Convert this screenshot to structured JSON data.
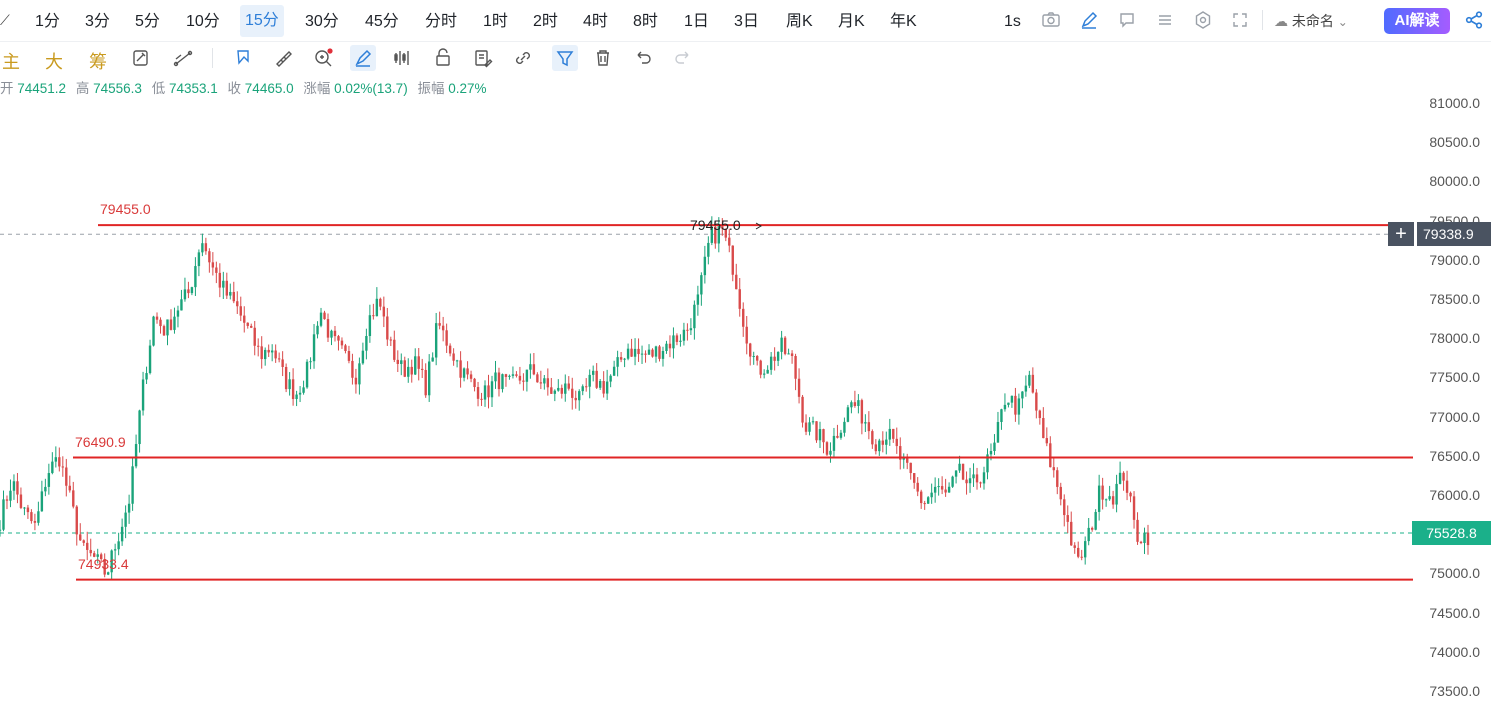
{
  "timeframes": [
    "1分",
    "3分",
    "5分",
    "10分",
    "15分",
    "30分",
    "45分",
    "分时",
    "1时",
    "2时",
    "4时",
    "8时",
    "1日",
    "3日",
    "周K",
    "月K",
    "年K"
  ],
  "active_timeframe": "15分",
  "top_right": {
    "interval_label": "1s",
    "workspace_name": "未命名",
    "ai_button": "AI解读"
  },
  "indicators_cn": [
    "主",
    "大",
    "筹"
  ],
  "ohlc": {
    "open_label": "开",
    "open": "74451.2",
    "high_label": "高",
    "high": "74556.3",
    "low_label": "低",
    "low": "74353.1",
    "close_label": "收",
    "close": "74465.0",
    "change_label": "涨幅",
    "change": "0.02%(13.7)",
    "amp_label": "振幅",
    "amp": "0.27%"
  },
  "price_axis": [
    "81000.0",
    "80500.0",
    "80000.0",
    "79500.0",
    "79000.0",
    "78500.0",
    "78000.0",
    "77500.0",
    "77000.0",
    "76500.0",
    "76000.0",
    "75500.0",
    "75000.0",
    "74500.0",
    "74000.0",
    "73500.0"
  ],
  "horizontal_lines": [
    {
      "label": "79455.0",
      "value": 79455.0
    },
    {
      "label": "76490.9",
      "value": 76490.9
    },
    {
      "label": "74933.4",
      "value": 74933.4
    }
  ],
  "annotation_label": "79455.0",
  "crosshair_price": "79338.9",
  "last_price": "75528.8",
  "colors": {
    "up": "#1aa37a",
    "down": "#d94a4a",
    "line": "#e02525",
    "accent": "#2f7fd8"
  },
  "chart_data": {
    "type": "candlestick",
    "ylim": [
      73300,
      81300
    ],
    "series_anchor_prices": [
      75700,
      76200,
      75800,
      75600,
      76300,
      76500,
      75900,
      75300,
      75200,
      75000,
      75500,
      76000,
      77300,
      78300,
      78100,
      78400,
      78600,
      79300,
      78900,
      78600,
      78400,
      78100,
      77800,
      77900,
      77500,
      77300,
      77600,
      78400,
      78000,
      77800,
      77500,
      78200,
      78500,
      77900,
      77600,
      77700,
      77400,
      78200,
      77900,
      77600,
      77400,
      77300,
      77500,
      77400,
      77500,
      77600,
      77400,
      77300,
      77400,
      77200,
      77500,
      77400,
      77600,
      77900,
      77800,
      77800,
      77900,
      78000,
      78100,
      78500,
      79300,
      79400,
      78900,
      78100,
      77600,
      77700,
      77900,
      77700,
      76900,
      76800,
      76600,
      76900,
      77200,
      77000,
      76700,
      76800,
      76500,
      76200,
      75900,
      76100,
      76000,
      76300,
      76100,
      76300,
      76600,
      77300,
      77100,
      77500,
      76800,
      76300,
      75800,
      75100,
      75500,
      76100,
      76000,
      76300,
      75500,
      75500
    ]
  }
}
